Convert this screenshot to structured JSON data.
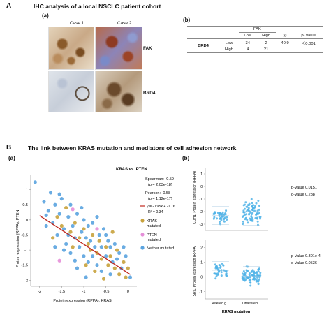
{
  "section_a": {
    "letter": "A",
    "title": "IHC analysis of a local NSCLC patient cohort",
    "panel_a_label": "(a)",
    "panel_b_label": "(b)",
    "case1": "Case 1",
    "case2": "Case 2",
    "row_fak": "FAK",
    "row_brd4": "BRD4",
    "table": {
      "group_header": "FAK",
      "col_low": "Low",
      "col_high": "High",
      "col_chi": "χ²",
      "col_p": "p- value",
      "row_label": "BRD4",
      "rows": [
        {
          "level": "Low",
          "low": "34",
          "high": "2",
          "chi": "40.9",
          "p": "＜0.001"
        },
        {
          "level": "High",
          "low": "4",
          "high": "21",
          "chi": "",
          "p": ""
        }
      ]
    }
  },
  "section_b": {
    "letter": "B",
    "title": "The link between KRAS mutation and mediators of cell adhesion network",
    "panel_a_label": "(a)",
    "panel_b_label": "(b)"
  },
  "scatter": {
    "title": "KRAS vs. PTEN",
    "spearman": "Spearman: -0.59",
    "spearman_p": "(p = 2.03e-18)",
    "pearson": "Pearson: -0.58",
    "pearson_p": "(p = 1.12e-17)",
    "fit": "y = -0.95x + -1.76",
    "r2": "R² = 0.34",
    "legend": [
      {
        "label": "KRAS mutated",
        "color": "#c8a23c"
      },
      {
        "label": "PTEN mutated",
        "color": "#e58fd8"
      },
      {
        "label": "Neither mutated",
        "color": "#5aa3df"
      }
    ],
    "colors": {
      "kras": "#c8a23c",
      "pten": "#e58fd8",
      "neither": "#5aa3df",
      "fit": "#c0281e"
    }
  },
  "chart_data": [
    {
      "type": "scatter",
      "title": "KRAS vs. PTEN",
      "xlabel": "Protein expression (RPPA): KRAS",
      "ylabel": "Protein expression (RPPA): PTEN",
      "xlim": [
        -2.2,
        0.2
      ],
      "ylim": [
        -2.2,
        1.5
      ],
      "xticks": [
        "-2",
        "-1.5",
        "-1",
        "-0.5",
        "0"
      ],
      "yticks": [
        "1",
        "0.5",
        "0",
        "-0.5",
        "-1",
        "-1.5",
        "-2"
      ],
      "fit_line": {
        "slope": -0.95,
        "intercept": -1.76
      },
      "series": [
        {
          "name": "KRAS mutated",
          "points": [
            [
              -1.6,
              0.1
            ],
            [
              -1.5,
              -0.2
            ],
            [
              -1.3,
              -0.4
            ],
            [
              -1.2,
              -0.1
            ],
            [
              -1.1,
              -0.6
            ],
            [
              -1.0,
              -0.3
            ],
            [
              -0.9,
              -0.8
            ],
            [
              -0.85,
              -1.0
            ],
            [
              -0.8,
              -0.5
            ],
            [
              -0.7,
              -1.1
            ],
            [
              -0.65,
              -0.7
            ],
            [
              -0.6,
              -1.3
            ],
            [
              -0.5,
              -0.9
            ],
            [
              -0.45,
              -1.5
            ],
            [
              -0.4,
              -1.2
            ],
            [
              -0.3,
              -1.6
            ],
            [
              -0.25,
              -1.0
            ],
            [
              -0.2,
              -1.8
            ],
            [
              -0.1,
              -1.4
            ],
            [
              -0.05,
              -1.9
            ],
            [
              0.0,
              -1.6
            ],
            [
              -1.4,
              0.4
            ],
            [
              -1.25,
              -0.9
            ],
            [
              -0.95,
              -1.5
            ],
            [
              -0.55,
              -1.95
            ],
            [
              -0.35,
              -0.4
            ],
            [
              -1.7,
              -0.6
            ],
            [
              -0.75,
              -1.7
            ]
          ]
        },
        {
          "name": "PTEN mutated",
          "points": [
            [
              -1.55,
              -1.35
            ],
            [
              -1.25,
              0.35
            ],
            [
              -0.7,
              -0.3
            ]
          ]
        },
        {
          "name": "Neither mutated",
          "points": [
            [
              -2.1,
              1.25
            ],
            [
              -1.9,
              0.6
            ],
            [
              -1.85,
              -0.2
            ],
            [
              -1.8,
              0.3
            ],
            [
              -1.75,
              0.9
            ],
            [
              -1.7,
              -0.1
            ],
            [
              -1.65,
              0.5
            ],
            [
              -1.6,
              -0.5
            ],
            [
              -1.55,
              0.2
            ],
            [
              -1.5,
              0.7
            ],
            [
              -1.45,
              -0.3
            ],
            [
              -1.4,
              -0.8
            ],
            [
              -1.35,
              0.1
            ],
            [
              -1.3,
              0.5
            ],
            [
              -1.3,
              -1.1
            ],
            [
              -1.25,
              -0.2
            ],
            [
              -1.2,
              -0.6
            ],
            [
              -1.15,
              0.2
            ],
            [
              -1.1,
              -0.9
            ],
            [
              -1.05,
              -0.4
            ],
            [
              -1.0,
              -1.2
            ],
            [
              -1.0,
              0.0
            ],
            [
              -0.95,
              -0.6
            ],
            [
              -0.9,
              -0.2
            ],
            [
              -0.9,
              -1.4
            ],
            [
              -0.85,
              -0.7
            ],
            [
              -0.8,
              -1.2
            ],
            [
              -0.8,
              -0.1
            ],
            [
              -0.75,
              -0.9
            ],
            [
              -0.7,
              -1.5
            ],
            [
              -0.65,
              -0.5
            ],
            [
              -0.6,
              -0.9
            ],
            [
              -0.6,
              -1.7
            ],
            [
              -0.55,
              -0.3
            ],
            [
              -0.5,
              -1.2
            ],
            [
              -0.45,
              -0.7
            ],
            [
              -0.4,
              -1.8
            ],
            [
              -0.4,
              -0.9
            ],
            [
              -0.35,
              -1.4
            ],
            [
              -0.3,
              -0.8
            ],
            [
              -0.25,
              -1.3
            ],
            [
              -0.2,
              -1.1
            ],
            [
              -0.15,
              -1.6
            ],
            [
              -0.1,
              -0.9
            ],
            [
              -0.05,
              -1.2
            ],
            [
              0.05,
              -1.9
            ],
            [
              -1.15,
              -1.6
            ],
            [
              -1.45,
              -1.0
            ],
            [
              -1.65,
              -0.9
            ],
            [
              -1.05,
              0.4
            ],
            [
              -0.95,
              -1.9
            ],
            [
              -0.5,
              -0.5
            ],
            [
              -1.35,
              -0.5
            ],
            [
              -1.2,
              -1.35
            ],
            [
              -0.7,
              0.1
            ],
            [
              -1.55,
              0.85
            ],
            [
              -1.85,
              0.15
            ]
          ]
        }
      ]
    },
    {
      "type": "scatter",
      "title": "",
      "ylabel": "CDH1, Protein expression (RPPA)",
      "yticks": [
        "1",
        "0",
        "-1",
        "-2",
        "-3"
      ],
      "ylim": [
        -3.5,
        1.5
      ],
      "categories": [
        "Altered g...",
        "Unaltered..."
      ],
      "stats": [
        "p-Value  0.0151",
        "q-Value  0.288"
      ],
      "series": [
        {
          "name": "Altered g...",
          "center": -2.3,
          "spread": 0.6,
          "n": 40
        },
        {
          "name": "Unaltered...",
          "center": -2.0,
          "spread": 0.9,
          "n": 75
        }
      ]
    },
    {
      "type": "scatter",
      "title": "",
      "ylabel": "SRC, Protein expression (RPPA)",
      "xlabel": "KRAS mutation",
      "yticks": [
        "2",
        "1",
        "0",
        "-1"
      ],
      "ylim": [
        -1.5,
        2.5
      ],
      "categories": [
        "Altered g...",
        "Unaltered..."
      ],
      "stats": [
        "p-Value  9.301e-4",
        "q-Value  0.0536"
      ],
      "series": [
        {
          "name": "Altered g...",
          "center": 0.45,
          "spread": 0.5,
          "n": 40
        },
        {
          "name": "Unaltered...",
          "center": 0.05,
          "spread": 0.55,
          "n": 75
        }
      ]
    }
  ]
}
